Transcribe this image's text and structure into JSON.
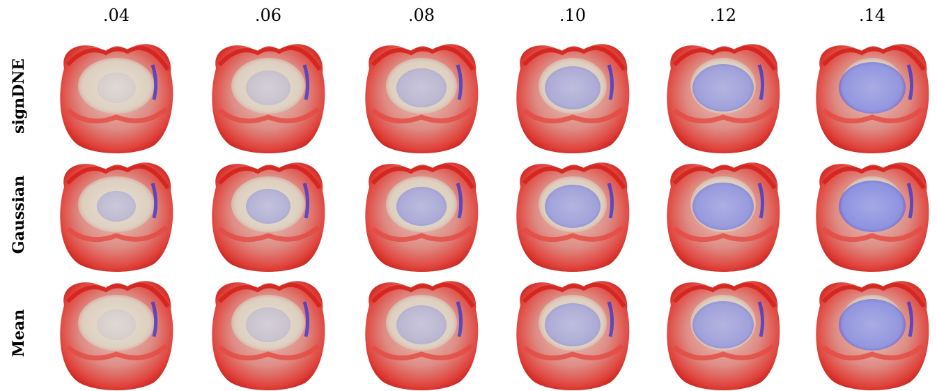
{
  "columns": [
    ".04",
    ".06",
    ".08",
    ".10",
    ".12",
    ".14"
  ],
  "rows": [
    "signDNE",
    "Gaussian",
    "Mean"
  ]
}
